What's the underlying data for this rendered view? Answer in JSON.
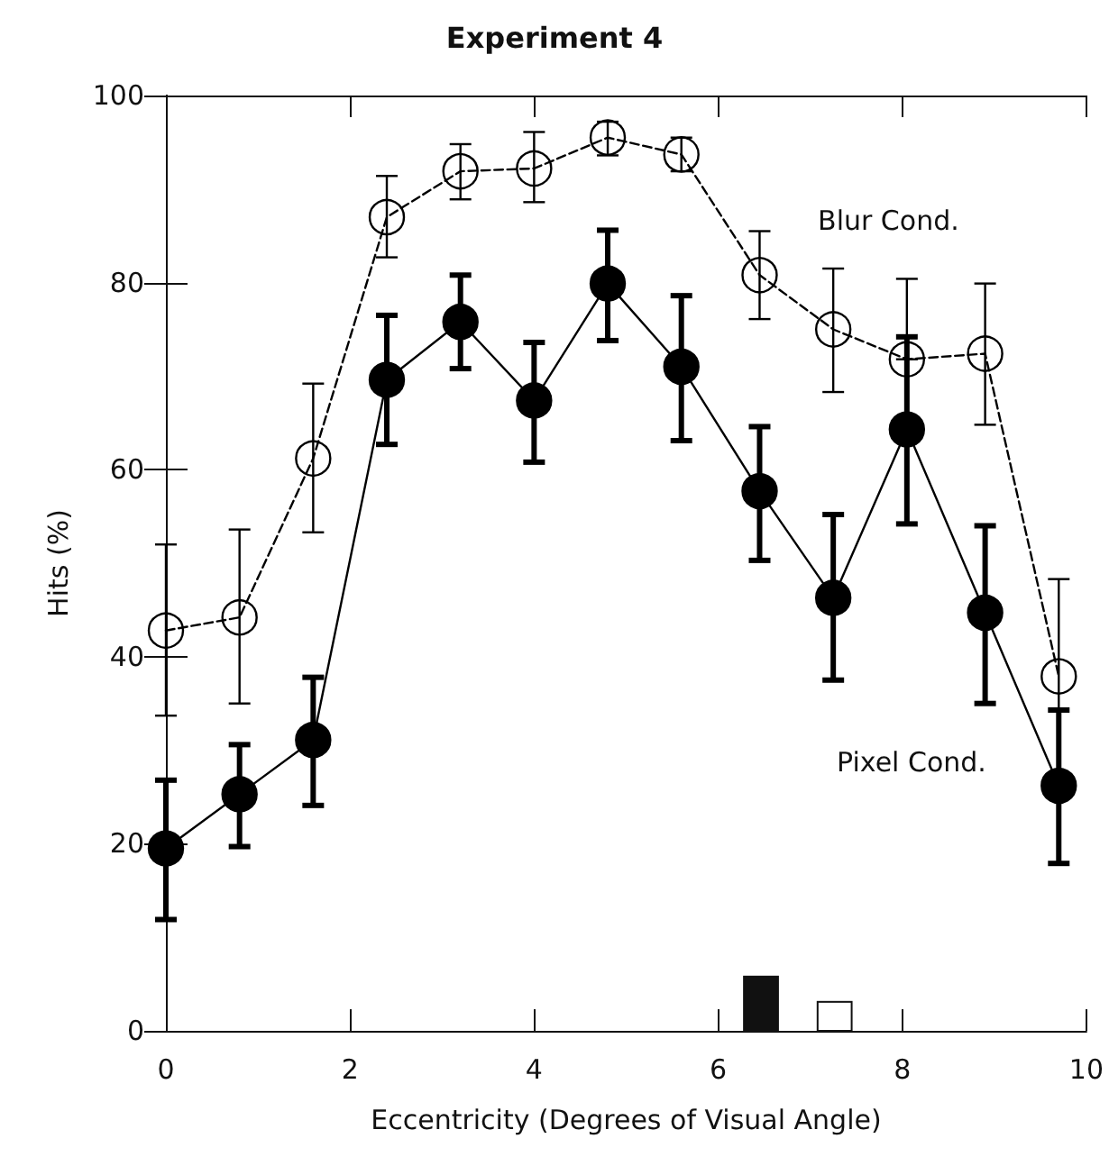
{
  "chart_data": {
    "type": "line",
    "title": "Experiment 4",
    "xlabel": "Eccentricity (Degrees of Visual Angle)",
    "ylabel": "Hits (%)",
    "x": [
      0,
      0.8,
      1.6,
      2.4,
      3.2,
      4.0,
      4.8,
      5.6,
      6.45,
      7.25,
      8.05,
      8.9,
      9.7
    ],
    "series": [
      {
        "name": "Blur Cond.",
        "color": "#000000",
        "marker": "circle",
        "line_style": "dashed",
        "values": [
          42.8,
          44.2,
          61.2,
          87.0,
          91.9,
          92.2,
          95.5,
          93.7,
          80.8,
          75.0,
          71.8,
          72.4,
          37.9
        ],
        "errors": [
          [
            33.7,
            52
          ],
          [
            35,
            53.6
          ],
          [
            53.3,
            69.2
          ],
          [
            82.7,
            91.4
          ],
          [
            88.9,
            94.8
          ],
          [
            88.6,
            96.1
          ],
          [
            93.6,
            97.2
          ],
          [
            91.9,
            95.5
          ],
          [
            76.1,
            85.5
          ],
          [
            68.3,
            81.5
          ],
          [
            71.8,
            80.4
          ],
          [
            64.8,
            79.9
          ],
          [
            27.5,
            48.3
          ]
        ]
      },
      {
        "name": "Pixel Cond.",
        "color": "#000000",
        "marker": "circle",
        "line_style": "solid",
        "values": [
          19.5,
          25.3,
          31.1,
          69.6,
          75.8,
          67.4,
          79.9,
          71.0,
          57.7,
          46.3,
          64.3,
          44.7,
          26.2
        ],
        "errors": [
          [
            11.9,
            26.8
          ],
          [
            19.7,
            30.6
          ],
          [
            24.1,
            37.8
          ],
          [
            62.7,
            76.5
          ],
          [
            70.8,
            80.8
          ],
          [
            60.8,
            73.6
          ],
          [
            73.8,
            85.6
          ],
          [
            63.1,
            78.6
          ],
          [
            50.3,
            64.6
          ],
          [
            37.5,
            55.2
          ],
          [
            54.2,
            74.2
          ],
          [
            35.0,
            54.0
          ],
          [
            17.9,
            34.3
          ]
        ]
      }
    ],
    "xlim": [
      0,
      10
    ],
    "xticks": [
      0,
      2,
      4,
      6,
      8,
      10
    ],
    "ylim": [
      0,
      100
    ],
    "yticks": [
      0,
      20,
      40,
      60,
      80,
      100
    ],
    "grid": false,
    "legend": false
  }
}
